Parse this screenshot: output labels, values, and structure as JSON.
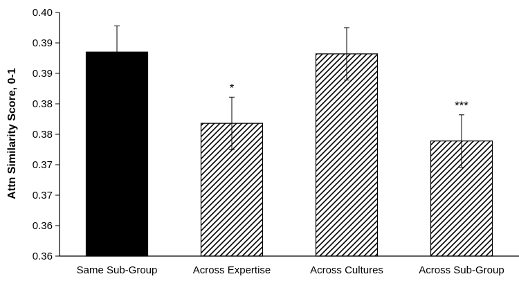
{
  "chart_data": {
    "type": "bar",
    "title": "",
    "xlabel": "",
    "ylabel": "Attn Similarity Score, 0-1",
    "ylim": [
      0.36,
      0.4
    ],
    "y_ticks": [
      0.36,
      0.365,
      0.37,
      0.375,
      0.38,
      0.385,
      0.39,
      0.395,
      0.4
    ],
    "y_tick_labels": [
      "0.36",
      "0.36",
      "0.37",
      "0.37",
      "0.38",
      "0.38",
      "0.39",
      "0.39",
      "0.40"
    ],
    "grid": false,
    "categories": [
      "Same Sub-Group",
      "Across Expertise",
      "Across Cultures",
      "Across Sub-Group"
    ],
    "values": [
      0.3935,
      0.3818,
      0.3932,
      0.3789
    ],
    "error_bars": [
      0.0043,
      0.0043,
      0.0043,
      0.0043
    ],
    "significance": [
      "",
      "*",
      "",
      "***"
    ],
    "fills": [
      "solid",
      "hatched",
      "hatched",
      "hatched"
    ],
    "colors": {
      "solid": "#000000",
      "hatch": "#000000",
      "background": "#ffffff"
    }
  }
}
